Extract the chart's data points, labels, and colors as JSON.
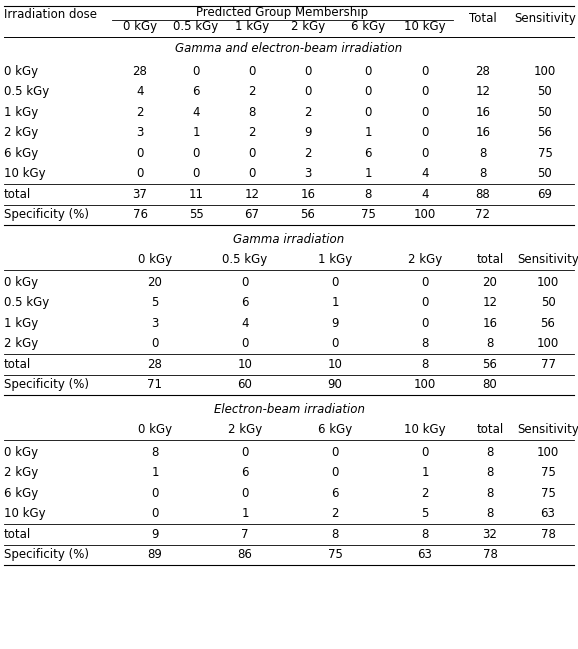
{
  "bg_color": "#ffffff",
  "font_size": 8.5,
  "section1_header": "Gamma and electron-beam irradiation",
  "section1_col_headers": [
    "0 kGy",
    "0.5 kGy",
    "1 kGy",
    "2 kGy",
    "6 kGy",
    "10 kGy",
    "Total",
    "Sensitivity"
  ],
  "section1_rows": [
    [
      "0 kGy",
      "28",
      "0",
      "0",
      "0",
      "0",
      "0",
      "28",
      "100"
    ],
    [
      "0.5 kGy",
      "4",
      "6",
      "2",
      "0",
      "0",
      "0",
      "12",
      "50"
    ],
    [
      "1 kGy",
      "2",
      "4",
      "8",
      "2",
      "0",
      "0",
      "16",
      "50"
    ],
    [
      "2 kGy",
      "3",
      "1",
      "2",
      "9",
      "1",
      "0",
      "16",
      "56"
    ],
    [
      "6 kGy",
      "0",
      "0",
      "0",
      "2",
      "6",
      "0",
      "8",
      "75"
    ],
    [
      "10 kGy",
      "0",
      "0",
      "0",
      "3",
      "1",
      "4",
      "8",
      "50"
    ],
    [
      "total",
      "37",
      "11",
      "12",
      "16",
      "8",
      "4",
      "88",
      "69"
    ],
    [
      "Specificity (%)",
      "76",
      "55",
      "67",
      "56",
      "75",
      "100",
      "72",
      ""
    ]
  ],
  "section2_header": "Gamma irradiation",
  "section2_col_headers": [
    "0 kGy",
    "0.5 kGy",
    "1 kGy",
    "2 kGy",
    "total",
    "Sensitivity"
  ],
  "section2_rows": [
    [
      "0 kGy",
      "20",
      "0",
      "0",
      "0",
      "20",
      "100"
    ],
    [
      "0.5 kGy",
      "5",
      "6",
      "1",
      "0",
      "12",
      "50"
    ],
    [
      "1 kGy",
      "3",
      "4",
      "9",
      "0",
      "16",
      "56"
    ],
    [
      "2 kGy",
      "0",
      "0",
      "0",
      "8",
      "8",
      "100"
    ],
    [
      "total",
      "28",
      "10",
      "10",
      "8",
      "56",
      "77"
    ],
    [
      "Specificity (%)",
      "71",
      "60",
      "90",
      "100",
      "80",
      ""
    ]
  ],
  "section3_header": "Electron-beam irradiation",
  "section3_col_headers": [
    "0 kGy",
    "2 kGy",
    "6 kGy",
    "10 kGy",
    "total",
    "Sensitivity"
  ],
  "section3_rows": [
    [
      "0 kGy",
      "8",
      "0",
      "0",
      "0",
      "8",
      "100"
    ],
    [
      "2 kGy",
      "1",
      "6",
      "0",
      "1",
      "8",
      "75"
    ],
    [
      "6 kGy",
      "0",
      "0",
      "6",
      "2",
      "8",
      "75"
    ],
    [
      "10 kGy",
      "0",
      "1",
      "2",
      "5",
      "8",
      "63"
    ],
    [
      "total",
      "9",
      "7",
      "8",
      "8",
      "32",
      "78"
    ],
    [
      "Specificity (%)",
      "89",
      "86",
      "75",
      "63",
      "78",
      ""
    ]
  ],
  "top_header_label": "Irradiation dose",
  "top_header_group": "Predicted Group Membership"
}
